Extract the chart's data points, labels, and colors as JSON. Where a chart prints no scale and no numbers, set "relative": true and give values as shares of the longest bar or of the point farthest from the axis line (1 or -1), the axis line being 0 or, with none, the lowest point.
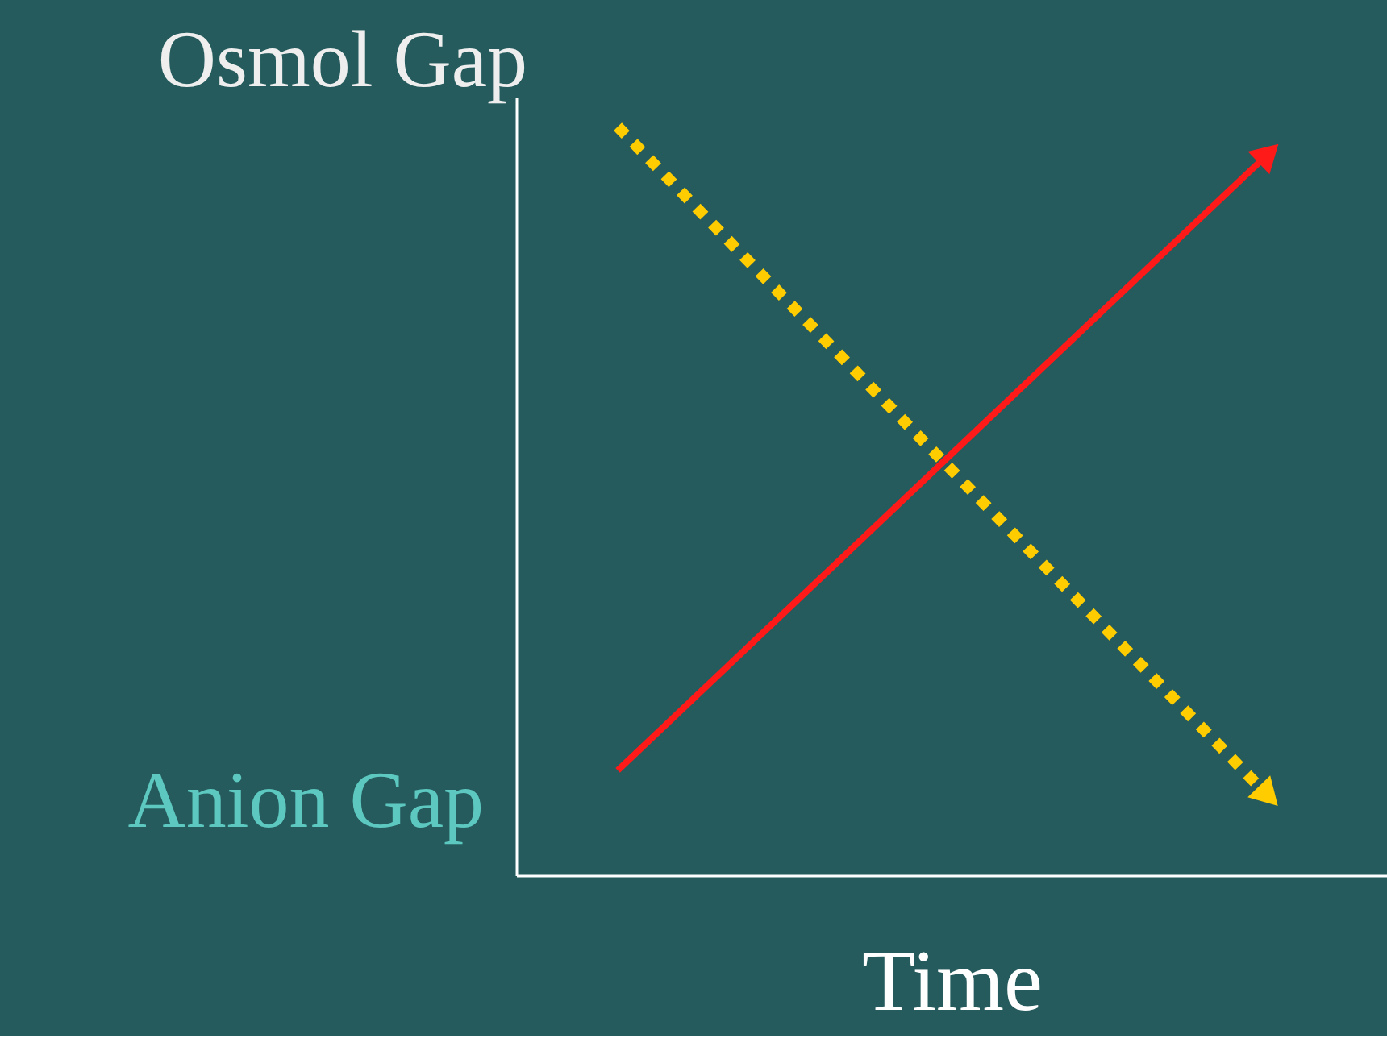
{
  "chart_data": {
    "type": "line",
    "relative": true,
    "categories": [
      null,
      null
    ],
    "xlabel": "Time",
    "grid": false,
    "tick_labels": false,
    "series": [
      {
        "name": "Osmol Gap",
        "color": "#ffcc00",
        "line_style": "dotted",
        "values": [
          1,
          0.11
        ]
      },
      {
        "name": "Anion Gap",
        "color": "#ff1a1a",
        "line_style": "solid",
        "values": [
          0.14,
          0.96
        ]
      }
    ]
  }
}
